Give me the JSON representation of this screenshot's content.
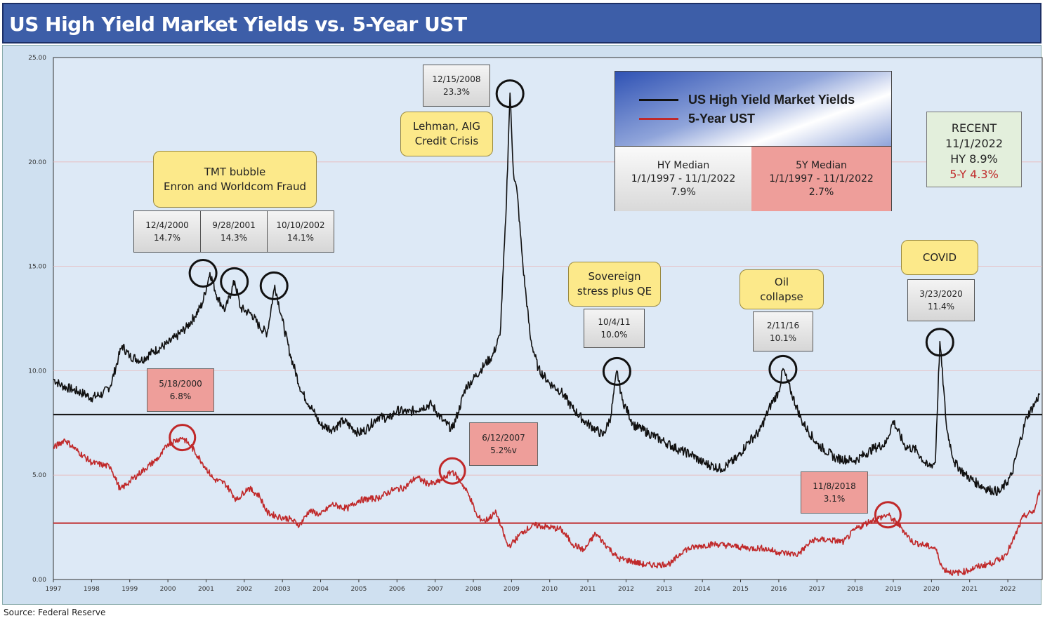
{
  "title": "US High Yield Market Yields vs. 5-Year UST",
  "source": "Source: Federal Reserve",
  "legend": {
    "hy_label": "US High Yield Market Yields",
    "ust_label": "5-Year UST",
    "hy_median_label": "HY Median",
    "hy_median_range": "1/1/1997 - 11/1/2022",
    "hy_median_value": "7.9%",
    "ust_median_label": "5Y Median",
    "ust_median_range": "1/1/1997 - 11/1/2022",
    "ust_median_value": "2.7%"
  },
  "recent": {
    "heading": "RECENT",
    "date": "11/1/2022",
    "hy": "HY 8.9%",
    "ust": "5-Y 4.3%"
  },
  "events": {
    "tmt": [
      "TMT bubble",
      "Enron and Worldcom Fraud"
    ],
    "lehman": [
      "Lehman, AIG",
      "Credit Crisis"
    ],
    "sovereign": [
      "Sovereign",
      "stress plus QE"
    ],
    "oil": [
      "Oil",
      "collapse"
    ],
    "covid": [
      "COVID"
    ]
  },
  "hy_peaks": [
    {
      "date": "12/4/2000",
      "value": "14.7%"
    },
    {
      "date": "9/28/2001",
      "value": "14.3%"
    },
    {
      "date": "10/10/2002",
      "value": "14.1%"
    },
    {
      "date": "12/15/2008",
      "value": "23.3%"
    },
    {
      "date": "10/4/11",
      "value": "10.0%"
    },
    {
      "date": "2/11/16",
      "value": "10.1%"
    },
    {
      "date": "3/23/2020",
      "value": "11.4%"
    }
  ],
  "ust_peaks": [
    {
      "date": "5/18/2000",
      "value": "6.8%"
    },
    {
      "date": "6/12/2007",
      "value": "5.2%v"
    },
    {
      "date": "11/8/2018",
      "value": "3.1%"
    }
  ],
  "colors": {
    "hy": "#111111",
    "ust": "#c0292a",
    "title_bg": "#3d5ea8",
    "panel_bg": "#cfe0f0",
    "plot_bg": "#dde9f6"
  },
  "chart_data": {
    "type": "line",
    "title": "US High Yield Market Yields vs. 5-Year UST",
    "xlabel": "",
    "ylabel": "",
    "xlim": [
      1997,
      2022.9
    ],
    "ylim": [
      0,
      25
    ],
    "y_ticks": [
      "0.00",
      "5.00",
      "10.00",
      "15.00",
      "20.00",
      "25.00"
    ],
    "x_ticks": [
      "1997",
      "1998",
      "1999",
      "2000",
      "2001",
      "2002",
      "2003",
      "2004",
      "2005",
      "2006",
      "2007",
      "2008",
      "2009",
      "2010",
      "2011",
      "2012",
      "2013",
      "2014",
      "2015",
      "2016",
      "2017",
      "2018",
      "2019",
      "2020",
      "2021",
      "2022"
    ],
    "grid": true,
    "hlines": [
      {
        "name": "HY Median",
        "y": 7.9
      },
      {
        "name": "5Y Median",
        "y": 2.7
      }
    ],
    "series": [
      {
        "name": "US High Yield Market Yields",
        "x": [
          1997.0,
          1997.2,
          1997.5,
          1997.8,
          1998.0,
          1998.3,
          1998.5,
          1998.7,
          1998.8,
          1999.0,
          1999.3,
          1999.6,
          2000.0,
          2000.2,
          2000.5,
          2000.7,
          2000.9,
          2001.1,
          2001.3,
          2001.5,
          2001.75,
          2001.9,
          2002.2,
          2002.4,
          2002.6,
          2002.8,
          2003.0,
          2003.2,
          2003.5,
          2003.8,
          2004.0,
          2004.3,
          2004.6,
          2005.0,
          2005.2,
          2005.5,
          2005.8,
          2006.0,
          2006.3,
          2006.6,
          2006.9,
          2007.2,
          2007.45,
          2007.6,
          2007.8,
          2008.0,
          2008.3,
          2008.5,
          2008.7,
          2008.85,
          2008.96,
          2009.05,
          2009.15,
          2009.3,
          2009.5,
          2009.7,
          2010.0,
          2010.3,
          2010.6,
          2010.9,
          2011.2,
          2011.4,
          2011.6,
          2011.76,
          2011.9,
          2012.2,
          2012.6,
          2013.0,
          2013.4,
          2013.7,
          2014.0,
          2014.5,
          2014.9,
          2015.2,
          2015.5,
          2015.8,
          2016.0,
          2016.11,
          2016.3,
          2016.6,
          2017.0,
          2017.5,
          2018.0,
          2018.5,
          2018.8,
          2019.0,
          2019.3,
          2019.6,
          2019.9,
          2020.1,
          2020.22,
          2020.4,
          2020.6,
          2020.9,
          2021.2,
          2021.5,
          2021.8,
          2022.1,
          2022.3,
          2022.5,
          2022.7,
          2022.84
        ],
        "values": [
          9.6,
          9.3,
          9.1,
          8.9,
          8.7,
          8.9,
          9.3,
          10.6,
          11.2,
          10.7,
          10.5,
          10.9,
          11.3,
          11.6,
          12.1,
          12.6,
          13.2,
          14.7,
          13.5,
          12.9,
          14.3,
          13.0,
          12.7,
          12.1,
          11.8,
          14.1,
          12.4,
          10.8,
          9.0,
          8.1,
          7.4,
          7.2,
          7.6,
          7.0,
          7.2,
          7.8,
          7.7,
          8.1,
          8.0,
          8.2,
          8.4,
          7.6,
          7.2,
          8.0,
          9.2,
          9.6,
          10.3,
          10.7,
          11.7,
          17.3,
          23.3,
          19.5,
          18.5,
          15.0,
          11.5,
          10.1,
          9.4,
          9.0,
          8.2,
          7.6,
          7.2,
          6.9,
          7.8,
          10.0,
          8.6,
          7.4,
          7.0,
          6.6,
          6.2,
          6.0,
          5.6,
          5.3,
          5.8,
          6.6,
          7.1,
          8.4,
          9.0,
          10.1,
          9.1,
          7.6,
          6.5,
          5.8,
          5.7,
          6.3,
          6.5,
          7.6,
          6.4,
          6.2,
          5.4,
          5.6,
          11.4,
          7.2,
          5.6,
          5.0,
          4.6,
          4.3,
          4.2,
          5.0,
          6.5,
          7.8,
          8.4,
          8.9
        ]
      },
      {
        "name": "5-Year UST",
        "x": [
          1997.0,
          1997.3,
          1997.6,
          1998.0,
          1998.5,
          1998.75,
          1999.0,
          1999.4,
          1999.8,
          2000.0,
          2000.38,
          2000.6,
          2000.9,
          2001.2,
          2001.5,
          2001.8,
          2002.1,
          2002.4,
          2002.6,
          2002.9,
          2003.2,
          2003.45,
          2003.7,
          2004.0,
          2004.3,
          2004.7,
          2005.0,
          2005.5,
          2005.9,
          2006.2,
          2006.5,
          2006.8,
          2007.0,
          2007.2,
          2007.45,
          2007.7,
          2007.9,
          2008.1,
          2008.3,
          2008.6,
          2008.9,
          2009.0,
          2009.3,
          2009.6,
          2010.0,
          2010.3,
          2010.6,
          2010.9,
          2011.2,
          2011.5,
          2011.8,
          2012.1,
          2012.5,
          2012.9,
          2013.2,
          2013.5,
          2013.9,
          2014.3,
          2014.8,
          2015.2,
          2015.6,
          2016.0,
          2016.5,
          2016.9,
          2017.3,
          2017.7,
          2018.0,
          2018.4,
          2018.86,
          2019.2,
          2019.5,
          2019.9,
          2020.1,
          2020.3,
          2020.6,
          2020.9,
          2021.2,
          2021.6,
          2021.9,
          2022.1,
          2022.4,
          2022.7,
          2022.84
        ],
        "values": [
          6.3,
          6.7,
          6.2,
          5.6,
          5.4,
          4.3,
          4.7,
          5.3,
          5.9,
          6.5,
          6.8,
          6.4,
          5.6,
          4.8,
          4.6,
          3.8,
          4.4,
          4.0,
          3.2,
          3.0,
          2.9,
          2.6,
          3.3,
          3.1,
          3.6,
          3.4,
          3.8,
          3.9,
          4.3,
          4.4,
          4.9,
          4.6,
          4.6,
          4.8,
          5.2,
          4.6,
          4.0,
          3.0,
          2.8,
          3.2,
          1.6,
          1.7,
          2.3,
          2.6,
          2.5,
          2.4,
          1.7,
          1.4,
          2.2,
          1.6,
          1.0,
          0.9,
          0.7,
          0.7,
          0.8,
          1.4,
          1.6,
          1.7,
          1.6,
          1.5,
          1.5,
          1.3,
          1.2,
          1.9,
          1.9,
          1.8,
          2.4,
          2.8,
          3.1,
          2.5,
          1.8,
          1.6,
          1.5,
          0.5,
          0.3,
          0.4,
          0.6,
          0.8,
          1.1,
          1.7,
          3.0,
          3.3,
          4.3
        ]
      }
    ]
  }
}
